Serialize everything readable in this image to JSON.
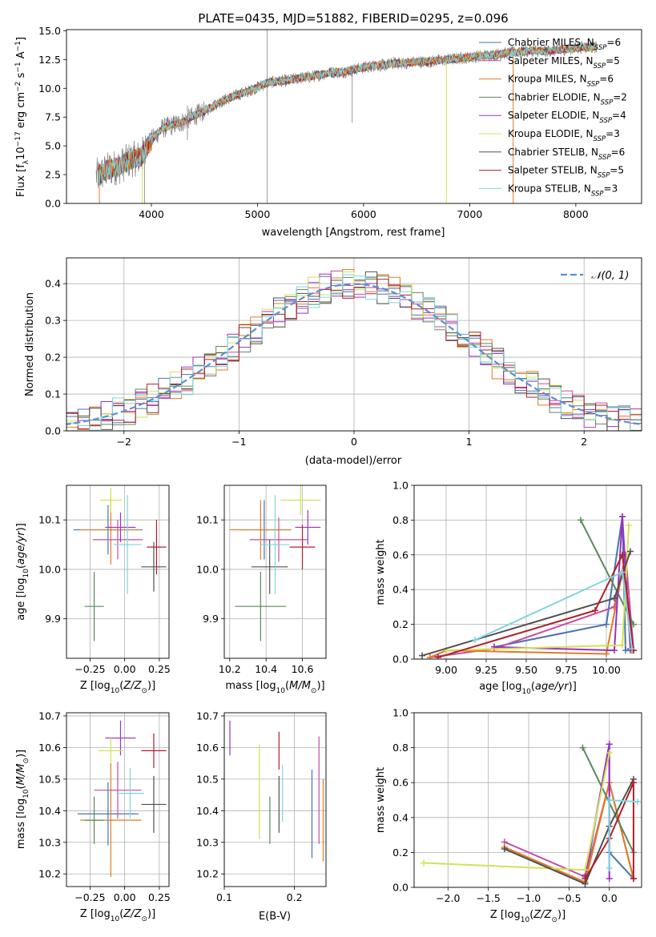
{
  "chart_data": [
    {
      "id": "spectrum",
      "type": "line",
      "title": "PLATE=0435, MJD=51882, FIBERID=0295, z=0.096",
      "xlabel": "wavelength [Angstrom, rest frame]",
      "ylabel": "Flux [f",
      "xlim": [
        3200,
        8620
      ],
      "ylim": [
        0,
        15.1
      ],
      "x_ticks": [
        4000,
        5000,
        6000,
        7000,
        8000
      ],
      "y_ticks": [
        0.0,
        2.5,
        5.0,
        7.5,
        10.0,
        12.5,
        15.0
      ],
      "legend_position": "upper right",
      "grid": false,
      "observed_flux": {
        "x": [
          3500,
          3600,
          3700,
          3800,
          3900,
          4000,
          4100,
          4200,
          4300,
          4400,
          4500,
          4600,
          4700,
          4800,
          4900,
          5000,
          5100,
          5200,
          5300,
          5400,
          5500,
          5600,
          5700,
          5800,
          5900,
          6000,
          6100,
          6200,
          6300,
          6400,
          6500,
          6600,
          6700,
          6800,
          6900,
          7000,
          7100,
          7200,
          7300,
          7400,
          7500,
          7600,
          7700,
          7800,
          7900,
          8000,
          8100,
          8200
        ],
        "y": [
          2.4,
          3.0,
          3.2,
          3.8,
          4.0,
          5.5,
          6.5,
          6.8,
          7.1,
          7.6,
          8.0,
          8.6,
          9.0,
          9.4,
          9.7,
          10.1,
          10.5,
          10.6,
          10.7,
          10.9,
          11.0,
          11.2,
          11.4,
          11.4,
          11.6,
          11.8,
          12.0,
          12.0,
          12.2,
          12.2,
          12.3,
          12.3,
          12.4,
          12.5,
          12.6,
          12.7,
          12.8,
          12.9,
          13.0,
          13.1,
          13.2,
          13.3,
          13.2,
          13.3,
          13.4,
          13.5,
          13.6,
          13.6
        ]
      },
      "series": [
        {
          "name": "Chabrier MILES, N",
          "color": "#4c72b0"
        },
        {
          "name": "Salpeter MILES, N",
          "color": "#c44e9f"
        },
        {
          "name": "Kroupa MILES, N",
          "color": "#e07b27"
        },
        {
          "name": "Chabrier ELODIE, N",
          "color": "#5a8a5a"
        },
        {
          "name": "Salpeter ELODIE, N",
          "color": "#9b30c0"
        },
        {
          "name": "Kroupa ELODIE, N",
          "color": "#d4e157"
        },
        {
          "name": "Chabrier STELIB, N",
          "color": "#505050"
        },
        {
          "name": "Salpeter STELIB, N",
          "color": "#b0202a"
        },
        {
          "name": "Kroupa STELIB, N",
          "color": "#7ed6dc"
        }
      ],
      "legend_nssp": [
        "6",
        "5",
        "6",
        "2",
        "4",
        "3",
        "6",
        "5",
        "3"
      ]
    },
    {
      "id": "residuals",
      "type": "line",
      "xlabel": "(data-model)/error",
      "ylabel": "Normed distribution",
      "xlim": [
        -2.5,
        2.5
      ],
      "ylim": [
        0,
        0.47
      ],
      "x_ticks": [
        -2,
        -1,
        0,
        1,
        2
      ],
      "y_ticks": [
        0.0,
        0.1,
        0.2,
        0.3,
        0.4
      ],
      "grid": true,
      "legend_entry": "𝒩(0, 1)",
      "gaussian_color": "#5b8fd6",
      "bin_width": 0.1
    },
    {
      "id": "age_vs_Z",
      "type": "scatter",
      "xlabel": "Z [log",
      "ylabel": "age  [log",
      "xlim": [
        -0.42,
        0.32
      ],
      "ylim": [
        9.82,
        10.17
      ],
      "x_ticks": [
        -0.25,
        0.0,
        0.25
      ],
      "x_tick_labels": [
        "−0.25",
        "0.00",
        "0.25"
      ],
      "y_ticks": [
        9.9,
        10.0,
        10.1
      ],
      "grid": true,
      "points": [
        {
          "x": -0.12,
          "y": 10.08,
          "xerr": 0.25,
          "yerr": 0.05,
          "color": "#4c72b0"
        },
        {
          "x": -0.05,
          "y": 10.06,
          "xerr": 0.18,
          "yerr": 0.04,
          "color": "#c44e9f"
        },
        {
          "x": -0.1,
          "y": 10.08,
          "xerr": 0.22,
          "yerr": 0.07,
          "color": "#e07b27"
        },
        {
          "x": -0.22,
          "y": 9.925,
          "xerr": 0.07,
          "yerr": 0.07,
          "color": "#5a8a5a"
        },
        {
          "x": -0.03,
          "y": 10.085,
          "xerr": 0.11,
          "yerr": 0.03,
          "color": "#9b30c0"
        },
        {
          "x": -0.1,
          "y": 10.14,
          "xerr": 0.08,
          "yerr": 0.025,
          "color": "#d4e157"
        },
        {
          "x": 0.21,
          "y": 10.005,
          "xerr": 0.09,
          "yerr": 0.05,
          "color": "#505050"
        },
        {
          "x": 0.23,
          "y": 10.045,
          "xerr": 0.07,
          "yerr": 0.055,
          "color": "#b0202a"
        },
        {
          "x": 0.02,
          "y": 10.05,
          "xerr": 0.1,
          "yerr": 0.1,
          "color": "#7ed6dc"
        }
      ]
    },
    {
      "id": "age_vs_mass",
      "type": "scatter",
      "xlabel": "mass [log",
      "xlim": [
        10.17,
        10.73
      ],
      "ylim": [
        9.82,
        10.17
      ],
      "x_ticks": [
        10.2,
        10.4,
        10.6
      ],
      "y_ticks": [
        9.9,
        10.0,
        10.1
      ],
      "grid": true,
      "points": [
        {
          "x": 10.39,
          "y": 10.08,
          "xerr": 0.14,
          "yerr": 0.06,
          "color": "#4c72b0"
        },
        {
          "x": 10.47,
          "y": 10.06,
          "xerr": 0.16,
          "yerr": 0.045,
          "color": "#c44e9f"
        },
        {
          "x": 10.37,
          "y": 10.08,
          "xerr": 0.17,
          "yerr": 0.06,
          "color": "#e07b27"
        },
        {
          "x": 10.37,
          "y": 9.925,
          "xerr": 0.14,
          "yerr": 0.07,
          "color": "#5a8a5a"
        },
        {
          "x": 10.63,
          "y": 10.085,
          "xerr": 0.07,
          "yerr": 0.035,
          "color": "#9b30c0"
        },
        {
          "x": 10.59,
          "y": 10.14,
          "xerr": 0.11,
          "yerr": 0.03,
          "color": "#d4e157"
        },
        {
          "x": 10.42,
          "y": 10.005,
          "xerr": 0.1,
          "yerr": 0.055,
          "color": "#505050"
        },
        {
          "x": 10.6,
          "y": 10.045,
          "xerr": 0.07,
          "yerr": 0.045,
          "color": "#b0202a"
        },
        {
          "x": 10.45,
          "y": 10.05,
          "xerr": 0.08,
          "yerr": 0.1,
          "color": "#7ed6dc"
        }
      ]
    },
    {
      "id": "weight_vs_age",
      "type": "line",
      "xlabel": "age  [log",
      "ylabel": "mass weight",
      "xlim": [
        8.8,
        10.22
      ],
      "ylim": [
        0,
        1
      ],
      "x_ticks": [
        9.0,
        9.25,
        9.5,
        9.75,
        10.0
      ],
      "x_tick_labels": [
        "9.00",
        "9.25",
        "9.50",
        "9.75",
        "10.00"
      ],
      "y_ticks": [
        0.0,
        0.2,
        0.4,
        0.6,
        0.8,
        1.0
      ],
      "grid": true,
      "series": [
        {
          "color": "#4c72b0",
          "x": [
            9.3,
            10.0,
            10.1,
            10.12,
            10.15
          ],
          "y": [
            0.07,
            0.2,
            0.82,
            0.05,
            0.05
          ]
        },
        {
          "color": "#c44e9f",
          "x": [
            8.9,
            9.3,
            10.05,
            10.12,
            10.17
          ],
          "y": [
            0.01,
            0.06,
            0.3,
            0.6,
            0.05
          ]
        },
        {
          "color": "#e07b27",
          "x": [
            8.9,
            9.0,
            10.0,
            10.1,
            10.16
          ],
          "y": [
            0.01,
            0.05,
            0.03,
            0.5,
            0.05
          ]
        },
        {
          "color": "#5a8a5a",
          "x": [
            9.84,
            10.17
          ],
          "y": [
            0.8,
            0.2
          ]
        },
        {
          "color": "#9b30c0",
          "x": [
            9.3,
            10.05,
            10.1,
            10.15
          ],
          "y": [
            0.07,
            0.05,
            0.82,
            0.06
          ]
        },
        {
          "color": "#d4e157",
          "x": [
            9.0,
            10.1,
            10.14
          ],
          "y": [
            0.05,
            0.08,
            0.77
          ]
        },
        {
          "color": "#505050",
          "x": [
            8.85,
            10.05,
            10.15
          ],
          "y": [
            0.02,
            0.35,
            0.62
          ]
        },
        {
          "color": "#b0202a",
          "x": [
            8.95,
            9.93,
            10.1,
            10.17
          ],
          "y": [
            0.01,
            0.28,
            0.6,
            0.05
          ]
        },
        {
          "color": "#7ed6dc",
          "x": [
            9.18,
            10.1,
            10.16
          ],
          "y": [
            0.11,
            0.5,
            0.06
          ]
        }
      ]
    },
    {
      "id": "mass_vs_Z",
      "type": "scatter",
      "xlabel": "Z [log",
      "ylabel": "mass [log",
      "xlim": [
        -0.42,
        0.32
      ],
      "ylim": [
        10.16,
        10.71
      ],
      "x_ticks": [
        -0.25,
        0.0,
        0.25
      ],
      "x_tick_labels": [
        "−0.25",
        "0.00",
        "0.25"
      ],
      "y_ticks": [
        10.2,
        10.3,
        10.4,
        10.5,
        10.6,
        10.7
      ],
      "grid": true,
      "points": [
        {
          "x": -0.12,
          "y": 10.39,
          "xerr": 0.22,
          "yerr": 0.1,
          "color": "#4c72b0"
        },
        {
          "x": -0.05,
          "y": 10.465,
          "xerr": 0.17,
          "yerr": 0.09,
          "color": "#c44e9f"
        },
        {
          "x": -0.1,
          "y": 10.37,
          "xerr": 0.22,
          "yerr": 0.18,
          "color": "#e07b27"
        },
        {
          "x": -0.22,
          "y": 10.37,
          "xerr": 0.07,
          "yerr": 0.075,
          "color": "#5a8a5a"
        },
        {
          "x": -0.03,
          "y": 10.63,
          "xerr": 0.11,
          "yerr": 0.055,
          "color": "#9b30c0"
        },
        {
          "x": -0.1,
          "y": 10.59,
          "xerr": 0.09,
          "yerr": 0.04,
          "color": "#d4e157"
        },
        {
          "x": 0.21,
          "y": 10.42,
          "xerr": 0.09,
          "yerr": 0.09,
          "color": "#505050"
        },
        {
          "x": 0.21,
          "y": 10.59,
          "xerr": 0.09,
          "yerr": 0.055,
          "color": "#b0202a"
        },
        {
          "x": 0.04,
          "y": 10.455,
          "xerr": 0.1,
          "yerr": 0.08,
          "color": "#7ed6dc"
        }
      ]
    },
    {
      "id": "mass_vs_ebv",
      "type": "scatter",
      "xlabel": "E(B-V)",
      "xlim": [
        0.1,
        0.245
      ],
      "ylim": [
        10.16,
        10.71
      ],
      "x_ticks": [
        0.1,
        0.2
      ],
      "y_ticks": [
        10.2,
        10.3,
        10.4,
        10.5,
        10.6,
        10.7
      ],
      "grid": true,
      "points": [
        {
          "x": 0.225,
          "y": 10.39,
          "yerr": 0.14,
          "color": "#4c72b0"
        },
        {
          "x": 0.235,
          "y": 10.465,
          "yerr": 0.17,
          "color": "#c44e9f"
        },
        {
          "x": 0.241,
          "y": 10.37,
          "yerr": 0.13,
          "color": "#e07b27"
        },
        {
          "x": 0.165,
          "y": 10.37,
          "yerr": 0.075,
          "color": "#5a8a5a"
        },
        {
          "x": 0.108,
          "y": 10.63,
          "yerr": 0.055,
          "color": "#9b30c0"
        },
        {
          "x": 0.15,
          "y": 10.46,
          "yerr": 0.15,
          "color": "#d4e157"
        },
        {
          "x": 0.178,
          "y": 10.42,
          "yerr": 0.09,
          "color": "#505050"
        },
        {
          "x": 0.178,
          "y": 10.59,
          "yerr": 0.06,
          "color": "#b0202a"
        },
        {
          "x": 0.183,
          "y": 10.455,
          "yerr": 0.09,
          "color": "#7ed6dc"
        }
      ]
    },
    {
      "id": "weight_vs_Z",
      "type": "line",
      "xlabel": "Z [log",
      "ylabel": "mass weight",
      "xlim": [
        -2.42,
        0.4
      ],
      "ylim": [
        0,
        1
      ],
      "x_ticks": [
        -2.0,
        -1.5,
        -1.0,
        -0.5,
        0.0
      ],
      "x_tick_labels": [
        "−2.0",
        "−1.5",
        "−1.0",
        "−0.5",
        "0.0"
      ],
      "y_ticks": [
        0.0,
        0.2,
        0.4,
        0.6,
        0.8,
        1.0
      ],
      "grid": true,
      "series": [
        {
          "color": "#4c72b0",
          "x": [
            -0.3,
            0.0,
            0.0,
            0.3
          ],
          "y": [
            0.05,
            0.82,
            0.2,
            0.05
          ]
        },
        {
          "color": "#c44e9f",
          "x": [
            -1.3,
            -0.3,
            0.0,
            0.3
          ],
          "y": [
            0.26,
            0.06,
            0.6,
            0.05
          ]
        },
        {
          "color": "#e07b27",
          "x": [
            -1.3,
            -0.3,
            0.0,
            0.3
          ],
          "y": [
            0.23,
            0.03,
            0.6,
            0.05
          ]
        },
        {
          "color": "#5a8a5a",
          "x": [
            -0.33,
            0.3
          ],
          "y": [
            0.8,
            0.2
          ]
        },
        {
          "color": "#9b30c0",
          "x": [
            -0.3,
            0.0,
            0.0
          ],
          "y": [
            0.07,
            0.82,
            0.05
          ]
        },
        {
          "color": "#d4e157",
          "x": [
            -2.3,
            -0.3,
            0.0
          ],
          "y": [
            0.14,
            0.1,
            0.77
          ]
        },
        {
          "color": "#505050",
          "x": [
            -1.3,
            -0.3,
            0.0,
            0.3
          ],
          "y": [
            0.22,
            0.02,
            0.35,
            0.62
          ]
        },
        {
          "color": "#b0202a",
          "x": [
            -0.3,
            0.0,
            0.3,
            0.3
          ],
          "y": [
            0.05,
            0.28,
            0.6,
            0.05
          ]
        },
        {
          "color": "#7ed6dc",
          "x": [
            0.0,
            0.0,
            0.35
          ],
          "y": [
            0.11,
            0.5,
            0.49
          ]
        }
      ]
    }
  ]
}
